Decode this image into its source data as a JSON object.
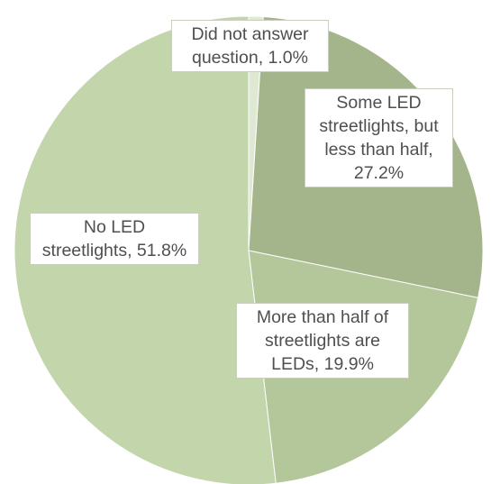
{
  "chart_data": {
    "type": "pie",
    "start_angle_deg": 0,
    "direction": "clockwise",
    "slices": [
      {
        "label": "Did not answer question",
        "value": 1.0,
        "display": "Did not answer question, 1.0%",
        "color": "#dfe8d3"
      },
      {
        "label": "Some LED streetlights, but less than half",
        "value": 27.2,
        "display": "Some LED streetlights, but less than half, 27.2%",
        "color": "#a4b48b"
      },
      {
        "label": "More than half of streetlights are LEDs",
        "value": 19.9,
        "display": "More than half of streetlights are LEDs, 19.9%",
        "color": "#b4c79b"
      },
      {
        "label": "No LED streetlights",
        "value": 51.8,
        "display": "No LED streetlights, 51.8%",
        "color": "#c3d6ab"
      }
    ]
  }
}
